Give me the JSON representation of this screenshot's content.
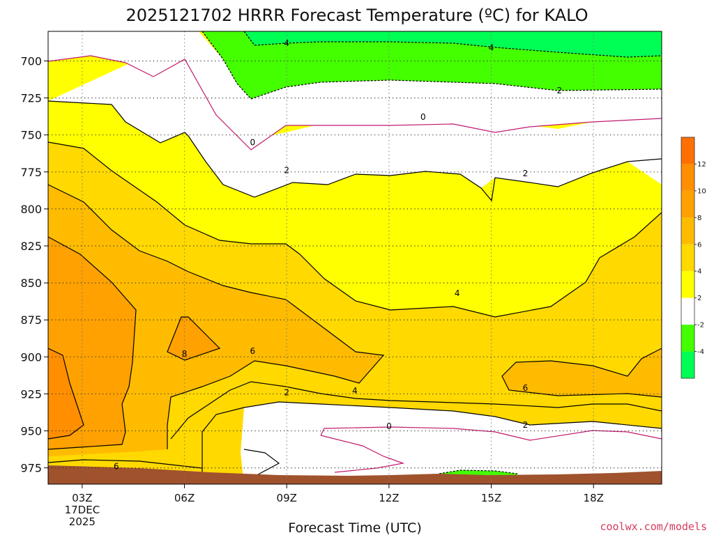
{
  "chart_data": {
    "type": "contour",
    "title": "2025121702 HRRR Forecast Temperature (ºC) for KALO",
    "xlabel": "Forecast Time (UTC)",
    "credit": "coolwx.com/models",
    "x_ticks": [
      {
        "hour": 3,
        "label": "03Z",
        "sub1": "17DEC",
        "sub2": "2025"
      },
      {
        "hour": 6,
        "label": "06Z"
      },
      {
        "hour": 9,
        "label": "09Z"
      },
      {
        "hour": 12,
        "label": "12Z"
      },
      {
        "hour": 15,
        "label": "15Z"
      },
      {
        "hour": 18,
        "label": "18Z"
      }
    ],
    "xlim": [
      2,
      20
    ],
    "y_ticks": [
      700,
      725,
      750,
      775,
      800,
      825,
      850,
      875,
      900,
      925,
      950,
      975
    ],
    "ylim_pressure": [
      680,
      986
    ],
    "y_scale": "pressure (hPa), inverted",
    "grid": true,
    "colorbar": {
      "labels": [
        "12",
        "10",
        "8",
        "6",
        "4",
        "2",
        "-2",
        "-4"
      ],
      "bands": [
        {
          "from": 12,
          "to": 14,
          "color": "#ff7000"
        },
        {
          "from": 10,
          "to": 12,
          "color": "#ff8e00"
        },
        {
          "from": 8,
          "to": 10,
          "color": "#ffa100"
        },
        {
          "from": 6,
          "to": 8,
          "color": "#ffbb00"
        },
        {
          "from": 4,
          "to": 6,
          "color": "#ffd900"
        },
        {
          "from": 2,
          "to": 4,
          "color": "#ffff00"
        },
        {
          "from": -2,
          "to": 2,
          "color": "#ffffff"
        },
        {
          "from": -4,
          "to": -2,
          "color": "#44ff00"
        },
        {
          "from": -6,
          "to": -4,
          "color": "#00ff55"
        }
      ]
    },
    "ground_color": "#a0522d",
    "contour_labels": [
      {
        "text": "4",
        "hour": 9.0,
        "p": 688
      },
      {
        "text": "4",
        "hour": 15.0,
        "p": 691
      },
      {
        "text": "2",
        "hour": 17.0,
        "p": 720
      },
      {
        "text": "0",
        "hour": 8.0,
        "p": 755
      },
      {
        "text": "0",
        "hour": 13.0,
        "p": 738
      },
      {
        "text": "2",
        "hour": 9.0,
        "p": 774
      },
      {
        "text": "2",
        "hour": 16.0,
        "p": 776
      },
      {
        "text": "4",
        "hour": 14.0,
        "p": 857
      },
      {
        "text": "8",
        "hour": 6.0,
        "p": 898
      },
      {
        "text": "6",
        "hour": 8.0,
        "p": 896
      },
      {
        "text": "4",
        "hour": 11.0,
        "p": 923
      },
      {
        "text": "6",
        "hour": 16.0,
        "p": 921
      },
      {
        "text": "2",
        "hour": 9.0,
        "p": 924
      },
      {
        "text": "0",
        "hour": 12.0,
        "p": 947
      },
      {
        "text": "2",
        "hour": 16.0,
        "p": 946
      },
      {
        "text": "6",
        "hour": 4.0,
        "p": 974
      }
    ]
  }
}
